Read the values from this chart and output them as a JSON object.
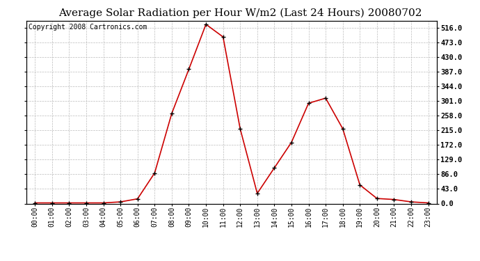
{
  "title": "Average Solar Radiation per Hour W/m2 (Last 24 Hours) 20080702",
  "copyright": "Copyright 2008 Cartronics.com",
  "hours": [
    "00:00",
    "01:00",
    "02:00",
    "03:00",
    "04:00",
    "05:00",
    "06:00",
    "07:00",
    "08:00",
    "09:00",
    "10:00",
    "11:00",
    "12:00",
    "13:00",
    "14:00",
    "15:00",
    "16:00",
    "17:00",
    "18:00",
    "19:00",
    "20:00",
    "21:00",
    "22:00",
    "23:00"
  ],
  "values": [
    2,
    2,
    2,
    2,
    2,
    5,
    14,
    90,
    265,
    395,
    527,
    490,
    220,
    30,
    105,
    180,
    295,
    310,
    220,
    55,
    15,
    12,
    5,
    2
  ],
  "line_color": "#cc0000",
  "marker": "+",
  "marker_color": "#000000",
  "background_color": "#ffffff",
  "grid_color": "#bbbbbb",
  "yticks": [
    0.0,
    43.0,
    86.0,
    129.0,
    172.0,
    215.0,
    258.0,
    301.0,
    344.0,
    387.0,
    430.0,
    473.0,
    516.0
  ],
  "ylim": [
    0.0,
    537.12
  ],
  "title_fontsize": 11,
  "copyright_fontsize": 7,
  "tick_fontsize": 7,
  "ytick_fontsize": 7.5
}
